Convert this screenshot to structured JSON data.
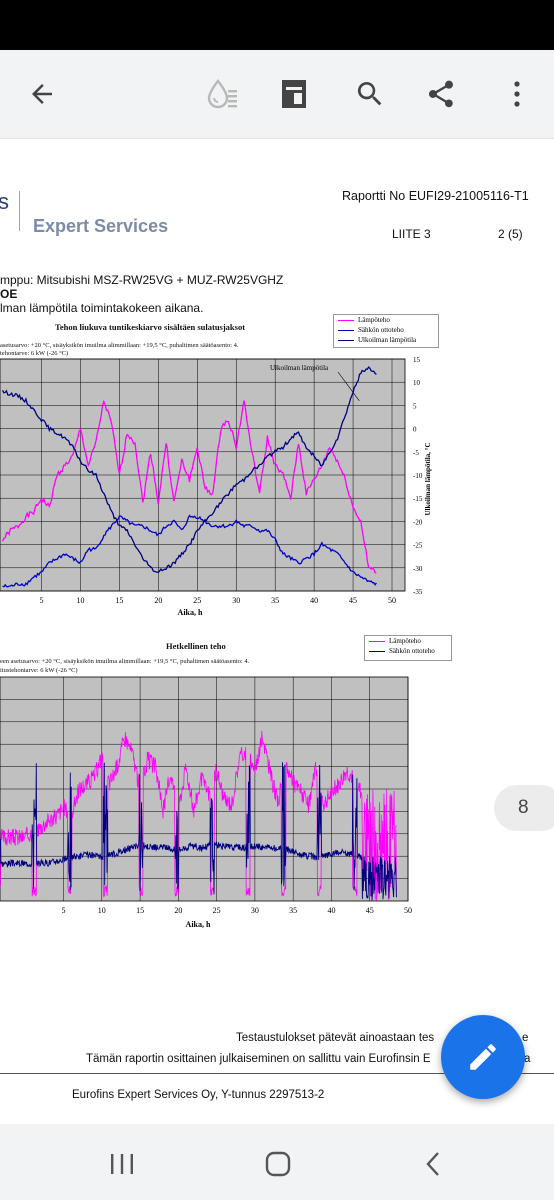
{
  "report": {
    "logo_text": "Expert Services",
    "report_no": "Raportti No EUFI29-21005116-T1",
    "appendix": "LIITE 3",
    "page_of": "2 (5)",
    "heat_pump": "mppu: Mitsubishi MSZ-RW25VG + MUZ-RW25VGHZ",
    "label_oe": "OE",
    "subtitle_line": "lman lämpötila toimintakokeen aikana."
  },
  "charts_text": {
    "chart1_desc_line1": "asetusarvo: +20 °C, sisäyksikön imuilma alimmillaan: +19,5 °C, puhaltimen säätöasento: 4.",
    "chart1_desc_line2": "tehontarve: 6 kW (-26 °C)",
    "chart1_annotation": "Ulkoilman lämpötila",
    "chart2_desc_line1": "een asetusarvo: +20 °C, sisäyksikön imuilma alimmillaan: +19,5 °C, puhaltimen säätöasento: 4.",
    "chart2_desc_line2": "itustehontarve: 6 kW (-26 °C)"
  },
  "chart_data": [
    {
      "type": "line",
      "title": "Tehon liukuva tuntikeskiarvo sisältäen sulatusjaksot",
      "xlabel": "Aika, h",
      "ylabel_right": "Ulkoilman lämpötila, °C",
      "x_ticks": [
        "5",
        "10",
        "15",
        "20",
        "25",
        "30",
        "35",
        "40",
        "45",
        "50"
      ],
      "y_right_ticks": [
        "15",
        "10",
        "5",
        "0",
        "-5",
        "-10",
        "-15",
        "-20",
        "-25",
        "-30",
        "-35"
      ],
      "xlim": [
        0,
        50
      ],
      "y_right_lim": [
        -35,
        15
      ],
      "grid": true,
      "legend_position": "top-right",
      "series": [
        {
          "name": "Lämpöteho",
          "color": "#ff00ff",
          "x": [
            0,
            1,
            2,
            3,
            4,
            5,
            6,
            7,
            8,
            9,
            10,
            11,
            12,
            13,
            14,
            15,
            16,
            17,
            18,
            19,
            20,
            21,
            22,
            23,
            24,
            25,
            26,
            27,
            28,
            29,
            30,
            31,
            32,
            33,
            34,
            35,
            36,
            37,
            38,
            39,
            40,
            41,
            42,
            43,
            44,
            45,
            46,
            47,
            48
          ],
          "y": [
            -24,
            -22,
            -21,
            -19,
            -18,
            -15,
            -17,
            -10,
            -8,
            -6,
            0,
            -8,
            -3,
            6,
            1,
            -10,
            -1,
            -3,
            -16,
            -5,
            -16,
            -3,
            -16,
            -7,
            -11,
            -4,
            -13,
            -14,
            0,
            2,
            -4,
            6,
            -5,
            -14,
            -2,
            -8,
            -10,
            -15,
            -3,
            -14,
            -11,
            -8,
            -4,
            -7,
            -11,
            -17,
            -20,
            -30,
            -31
          ]
        },
        {
          "name": "Sähkön ottoteho",
          "color": "#0000cc",
          "x": [
            0,
            1,
            2,
            3,
            4,
            5,
            6,
            7,
            8,
            9,
            10,
            11,
            12,
            13,
            14,
            15,
            16,
            17,
            18,
            19,
            20,
            21,
            22,
            23,
            24,
            25,
            26,
            27,
            28,
            29,
            30,
            31,
            32,
            33,
            34,
            35,
            36,
            37,
            38,
            39,
            40,
            41,
            42,
            43,
            44,
            45,
            46,
            47,
            48
          ],
          "y": [
            -34,
            -34,
            -33.5,
            -33.5,
            -32,
            -31,
            -29,
            -28,
            -27,
            -28,
            -29,
            -26,
            -26,
            -23,
            -21,
            -19,
            -20,
            -21,
            -21,
            -22,
            -23,
            -21,
            -20,
            -22,
            -19,
            -19,
            -20,
            -21,
            -21,
            -21,
            -20,
            -21,
            -21,
            -22,
            -22,
            -24,
            -27,
            -28,
            -29,
            -28,
            -27,
            -25,
            -26,
            -27,
            -29,
            -31,
            -32,
            -33,
            -33.5
          ]
        },
        {
          "name": "Ulkoilman lämpötila",
          "color": "#000080",
          "x": [
            0,
            1,
            2,
            3,
            4,
            5,
            6,
            7,
            8,
            9,
            10,
            11,
            12,
            13,
            14,
            15,
            16,
            17,
            18,
            19,
            20,
            21,
            22,
            23,
            24,
            25,
            26,
            27,
            28,
            29,
            30,
            31,
            32,
            33,
            34,
            35,
            36,
            37,
            38,
            39,
            40,
            41,
            42,
            43,
            44,
            45,
            46,
            47,
            48
          ],
          "y": [
            8,
            7.5,
            7,
            6,
            4,
            2,
            0,
            -1,
            -2,
            -4,
            -7,
            -9,
            -10,
            -14,
            -18,
            -21,
            -22,
            -25,
            -28,
            -30,
            -31,
            -30,
            -29,
            -27,
            -25,
            -22,
            -20,
            -18,
            -16,
            -14,
            -12,
            -11,
            -9,
            -8,
            -6,
            -5,
            -4,
            -2,
            -1,
            -4,
            -6,
            -8,
            -5,
            -2,
            3,
            8,
            12,
            13,
            12
          ]
        }
      ]
    },
    {
      "type": "line",
      "title": "Hetkellinen teho",
      "xlabel": "Aika, h",
      "x_ticks": [
        "5",
        "10",
        "15",
        "20",
        "25",
        "30",
        "35",
        "40",
        "45",
        "50"
      ],
      "xlim": [
        0,
        50
      ],
      "grid": true,
      "legend_position": "top-right",
      "series": [
        {
          "name": "Lämpöteho",
          "color": "#ff00ff"
        },
        {
          "name": "Sähkön ottoteho",
          "color": "#000080"
        }
      ]
    }
  ],
  "footer": {
    "line1": "Testaustulokset pätevät ainoastaan tes",
    "line1_end": "e",
    "line2": "Tämän raportin osittainen julkaiseminen on sallittu vain Eurofinsin E",
    "line2_end": "a",
    "company": "Eurofins Expert Services Oy, Y-tunnus 2297513-2"
  },
  "viewer": {
    "page_number": "8",
    "icons": {
      "back": "back-arrow-icon",
      "ink": "ink-drop-icon",
      "layout": "reading-mode-icon",
      "search": "search-icon",
      "share": "share-icon",
      "more": "more-vert-icon",
      "edit": "edit-pencil-icon"
    }
  }
}
